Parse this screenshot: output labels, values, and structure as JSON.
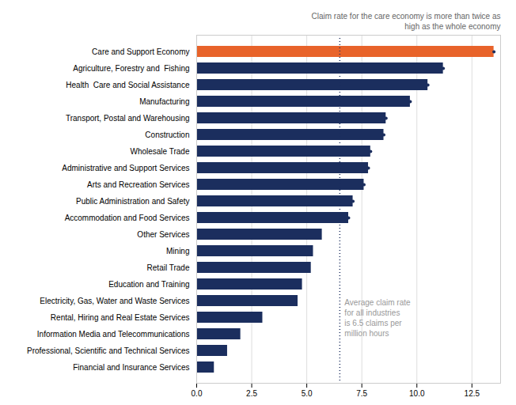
{
  "chart_data": {
    "type": "bar",
    "orientation": "horizontal",
    "categories": [
      "Care and Support Economy",
      "Agriculture, Forestry and  Fishing",
      "Health  Care and Social Assistance",
      "Manufacturing",
      "Transport, Postal and Warehousing",
      "Construction",
      "Wholesale Trade",
      "Administrative and Support Services",
      "Arts and Recreation Services",
      "Public Administration and Safety",
      "Accommodation and Food Services",
      "Other Services",
      "Mining",
      "Retail Trade",
      "Education and Training",
      "Electricity, Gas, Water and Waste Services",
      "Rental, Hiring and Real Estate Services",
      "Information Media and Telecommunications",
      "Professional, Scientific and Technical Services",
      "Financial and Insurance Services"
    ],
    "values": [
      13.5,
      11.2,
      10.5,
      9.7,
      8.6,
      8.5,
      7.9,
      7.8,
      7.6,
      7.1,
      6.9,
      5.7,
      5.3,
      5.2,
      4.8,
      4.6,
      3.0,
      2.0,
      1.4,
      0.8
    ],
    "colors": [
      "#E8632A",
      "#1B2E5E",
      "#1B2E5E",
      "#1B2E5E",
      "#1B2E5E",
      "#1B2E5E",
      "#1B2E5E",
      "#1B2E5E",
      "#1B2E5E",
      "#1B2E5E",
      "#1B2E5E",
      "#1B2E5E",
      "#1B2E5E",
      "#1B2E5E",
      "#1B2E5E",
      "#1B2E5E",
      "#1B2E5E",
      "#1B2E5E",
      "#1B2E5E",
      "#1B2E5E"
    ],
    "end_dots": [
      true,
      true,
      true,
      true,
      true,
      true,
      true,
      true,
      true,
      true,
      true,
      false,
      false,
      false,
      false,
      false,
      false,
      false,
      false,
      false
    ],
    "end_dot_color": "#1B2E5E",
    "xlim": [
      0,
      13.8
    ],
    "xticks": [
      {
        "value": 0,
        "label": "0.0"
      },
      2.5,
      {
        "value": 5,
        "label": "5.0"
      },
      7.5,
      {
        "value": 10,
        "label": "10.0"
      },
      12.5
    ],
    "grid": true,
    "reference_line": {
      "x": 6.5,
      "color": "#1B2E5E",
      "line_style": "dotted",
      "annotation": "Average claim rate\nfor all industries\nis 6.5 claims per\nmillion hours"
    },
    "annotation": "Claim rate for the care economy is more than twice as\nhigh as the whole economy"
  }
}
